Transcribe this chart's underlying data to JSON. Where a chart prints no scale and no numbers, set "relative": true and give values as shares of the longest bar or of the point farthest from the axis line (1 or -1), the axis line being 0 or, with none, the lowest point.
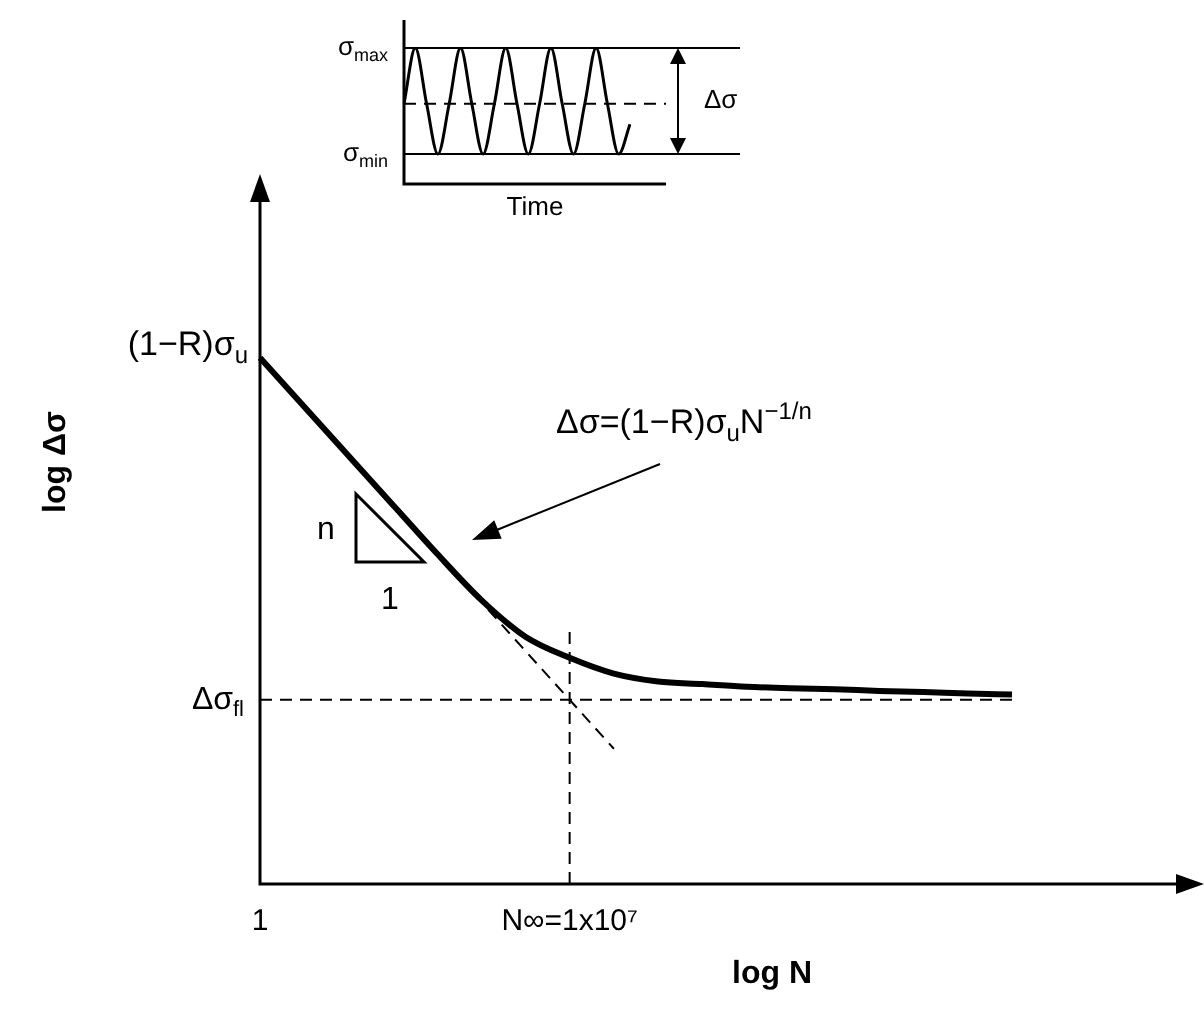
{
  "chart_data": [
    {
      "type": "line",
      "xlabel": "log N",
      "ylabel": "log Δσ",
      "relative": true,
      "grid": false,
      "legend": false,
      "marker": "none",
      "categories": [
        "1",
        null,
        null,
        null,
        null,
        null,
        null,
        "N∞=1x10⁷",
        null,
        null,
        null,
        null,
        null,
        null,
        null,
        null,
        null,
        null
      ],
      "series": [
        {
          "color": "#000000",
          "values": [
            1,
            0.907,
            0.814,
            0.721,
            0.628,
            0.54,
            0.47,
            0.43,
            0.4,
            0.385,
            0.38,
            0.375,
            0.372,
            0.37,
            0.367,
            0.365,
            0.362,
            0.36
          ]
        },
        {
          "color": "#000000",
          "values": [
            1,
            0.907,
            0.814,
            0.721,
            0.628,
            0.536,
            0.443,
            0.35,
            0.257,
            null,
            null,
            null,
            null,
            null,
            null,
            null,
            null,
            null
          ],
          "line_style": "dashed"
        }
      ],
      "ref_lines": [
        {
          "axis": "y",
          "value": 0.35,
          "label": "Δσ$_{fl}$",
          "line_style": "dashed"
        },
        {
          "axis": "x",
          "value": "N∞=1x10⁷",
          "line_style": "dashed"
        }
      ],
      "annotations": [
        {
          "text": "(1−R)σ$_{u}$",
          "x": "1",
          "y": 1
        },
        "Δσ=(1−R)σ$_{u}$N$^{−1/n}$",
        "n",
        "1"
      ]
    },
    {
      "type": "line",
      "xlabel": "Time",
      "relative": true,
      "grid": false,
      "legend": false,
      "marker": "none",
      "color": "#000000",
      "categories": [
        null,
        null,
        null,
        null,
        null,
        null,
        null,
        null,
        null,
        null,
        null,
        null,
        null,
        null,
        null,
        null,
        null,
        null,
        null,
        null,
        null
      ],
      "values": [
        0.59,
        1,
        0.59,
        0.22,
        0.59,
        1,
        0.59,
        0.22,
        0.59,
        1,
        0.59,
        0.22,
        0.59,
        1,
        0.59,
        0.22,
        0.59,
        1,
        0.59,
        0.22,
        0.44
      ],
      "ref_lines": [
        {
          "axis": "y",
          "value": 1,
          "label": "σ$_{max}$"
        },
        {
          "axis": "y",
          "value": 0.22,
          "label": "σ$_{min}$"
        },
        {
          "axis": "y",
          "value": 0.59,
          "line_style": "dashed"
        }
      ],
      "annotations": [
        "Δσ"
      ]
    }
  ]
}
